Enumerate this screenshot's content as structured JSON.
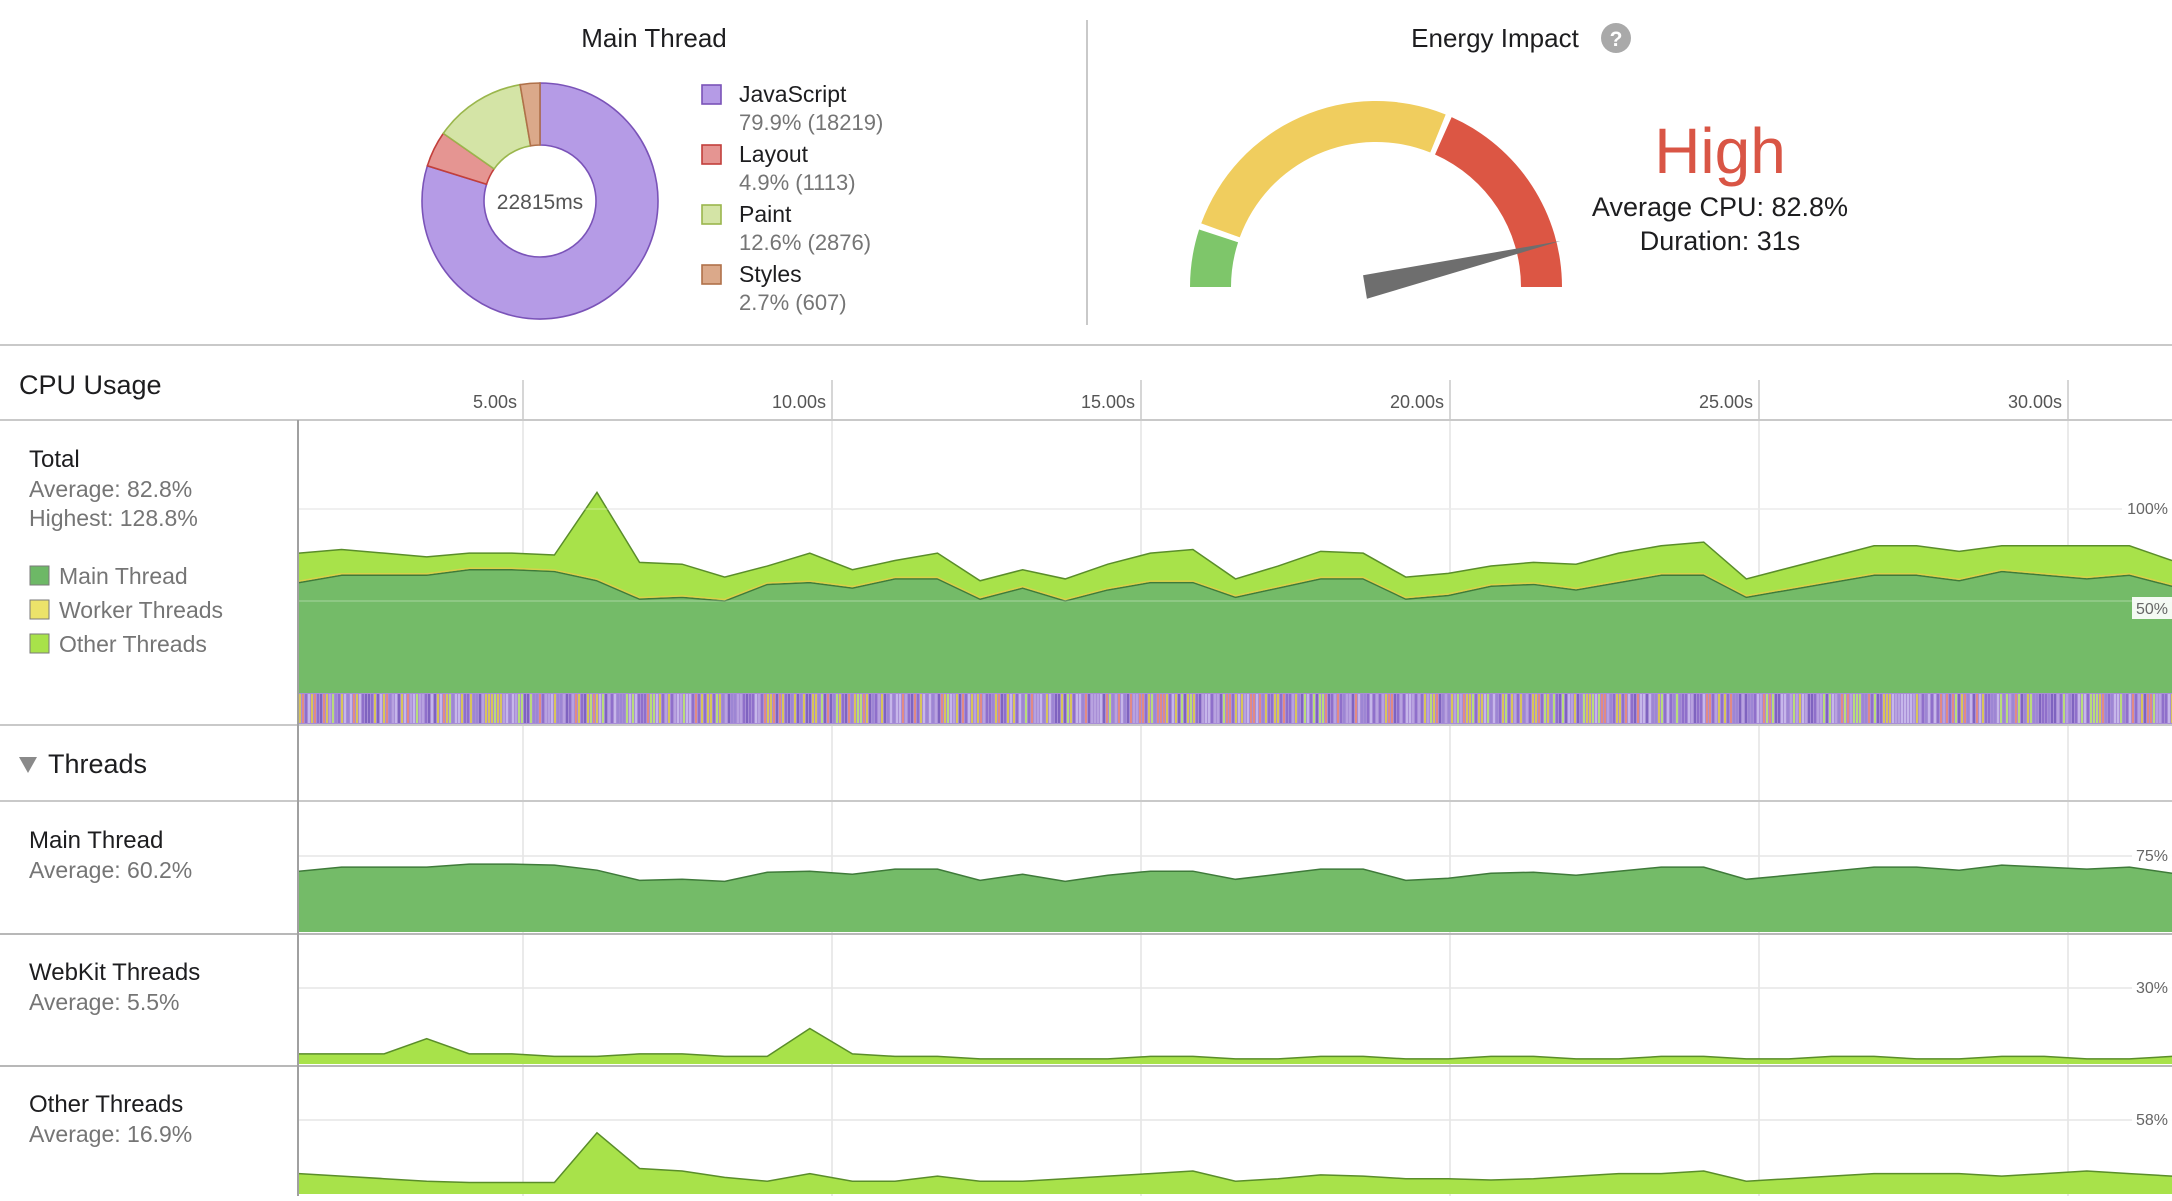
{
  "main_thread_panel": {
    "title": "Main Thread",
    "center_label": "22815ms",
    "legend": [
      {
        "name": "JavaScript",
        "value_text": "79.9% (18219)",
        "percent": 79.9,
        "color": "#b59be6",
        "stroke": "#7a53b8"
      },
      {
        "name": "Layout",
        "value_text": "4.9% (1113)",
        "percent": 4.9,
        "color": "#e59592",
        "stroke": "#c23f3b"
      },
      {
        "name": "Paint",
        "value_text": "12.6% (2876)",
        "percent": 12.6,
        "color": "#d4e4a6",
        "stroke": "#9ab64c"
      },
      {
        "name": "Styles",
        "value_text": "2.7% (607)",
        "percent": 2.7,
        "color": "#dba98a",
        "stroke": "#b0714a"
      }
    ]
  },
  "energy_panel": {
    "title": "Energy Impact",
    "help_icon": "question-icon",
    "level": "High",
    "level_color": "#d95545",
    "average_cpu": "Average CPU: 82.8%",
    "duration": "Duration: 31s",
    "gauge_fraction": 0.828,
    "colors": {
      "low": "#7ec66a",
      "medium": "#f0cd5e",
      "high": "#dc5644",
      "needle": "#6e6e6e"
    }
  },
  "cpu_usage": {
    "title": "CPU Usage",
    "time_ticks": [
      "5.00s",
      "10.00s",
      "15.00s",
      "20.00s",
      "25.00s",
      "30.00s"
    ],
    "total": {
      "title": "Total",
      "average": "Average: 82.8%",
      "highest": "Highest: 128.8%",
      "badges": [
        "100%",
        "50%"
      ],
      "legend": [
        {
          "name": "Main Thread",
          "color": "#6db866"
        },
        {
          "name": "Worker Threads",
          "color": "#ece36a"
        },
        {
          "name": "Other Threads",
          "color": "#a8e24a"
        }
      ]
    }
  },
  "threads": {
    "title": "Threads",
    "toggle_icon": "triangle-down-icon",
    "rows": [
      {
        "title": "Main Thread",
        "average": "Average: 60.2%",
        "badge": "75%"
      },
      {
        "title": "WebKit Threads",
        "average": "Average: 5.5%",
        "badge": "30%"
      },
      {
        "title": "Other Threads",
        "average": "Average: 16.9%",
        "badge": "58%"
      }
    ]
  },
  "chart_data": {
    "type": "area",
    "x_unit": "s",
    "xlim": [
      0,
      32
    ],
    "series": [
      {
        "name": "Main Thread",
        "values": [
          60,
          64,
          64,
          64,
          67,
          67,
          66,
          61,
          51,
          52,
          50,
          59,
          60,
          57,
          62,
          62,
          51,
          57,
          50,
          56,
          60,
          60,
          52,
          57,
          62,
          62,
          51,
          53,
          58,
          59,
          56,
          60,
          64,
          64,
          52,
          56,
          60,
          64,
          64,
          61,
          66,
          64,
          62,
          64,
          58
        ]
      },
      {
        "name": "Other Threads",
        "values": [
          16,
          14,
          12,
          10,
          9,
          9,
          9,
          48,
          20,
          18,
          13,
          10,
          16,
          10,
          10,
          14,
          10,
          10,
          12,
          14,
          16,
          18,
          10,
          12,
          15,
          14,
          12,
          12,
          11,
          12,
          14,
          16,
          16,
          18,
          10,
          12,
          14,
          16,
          16,
          16,
          14,
          16,
          18,
          16,
          14
        ]
      }
    ]
  }
}
